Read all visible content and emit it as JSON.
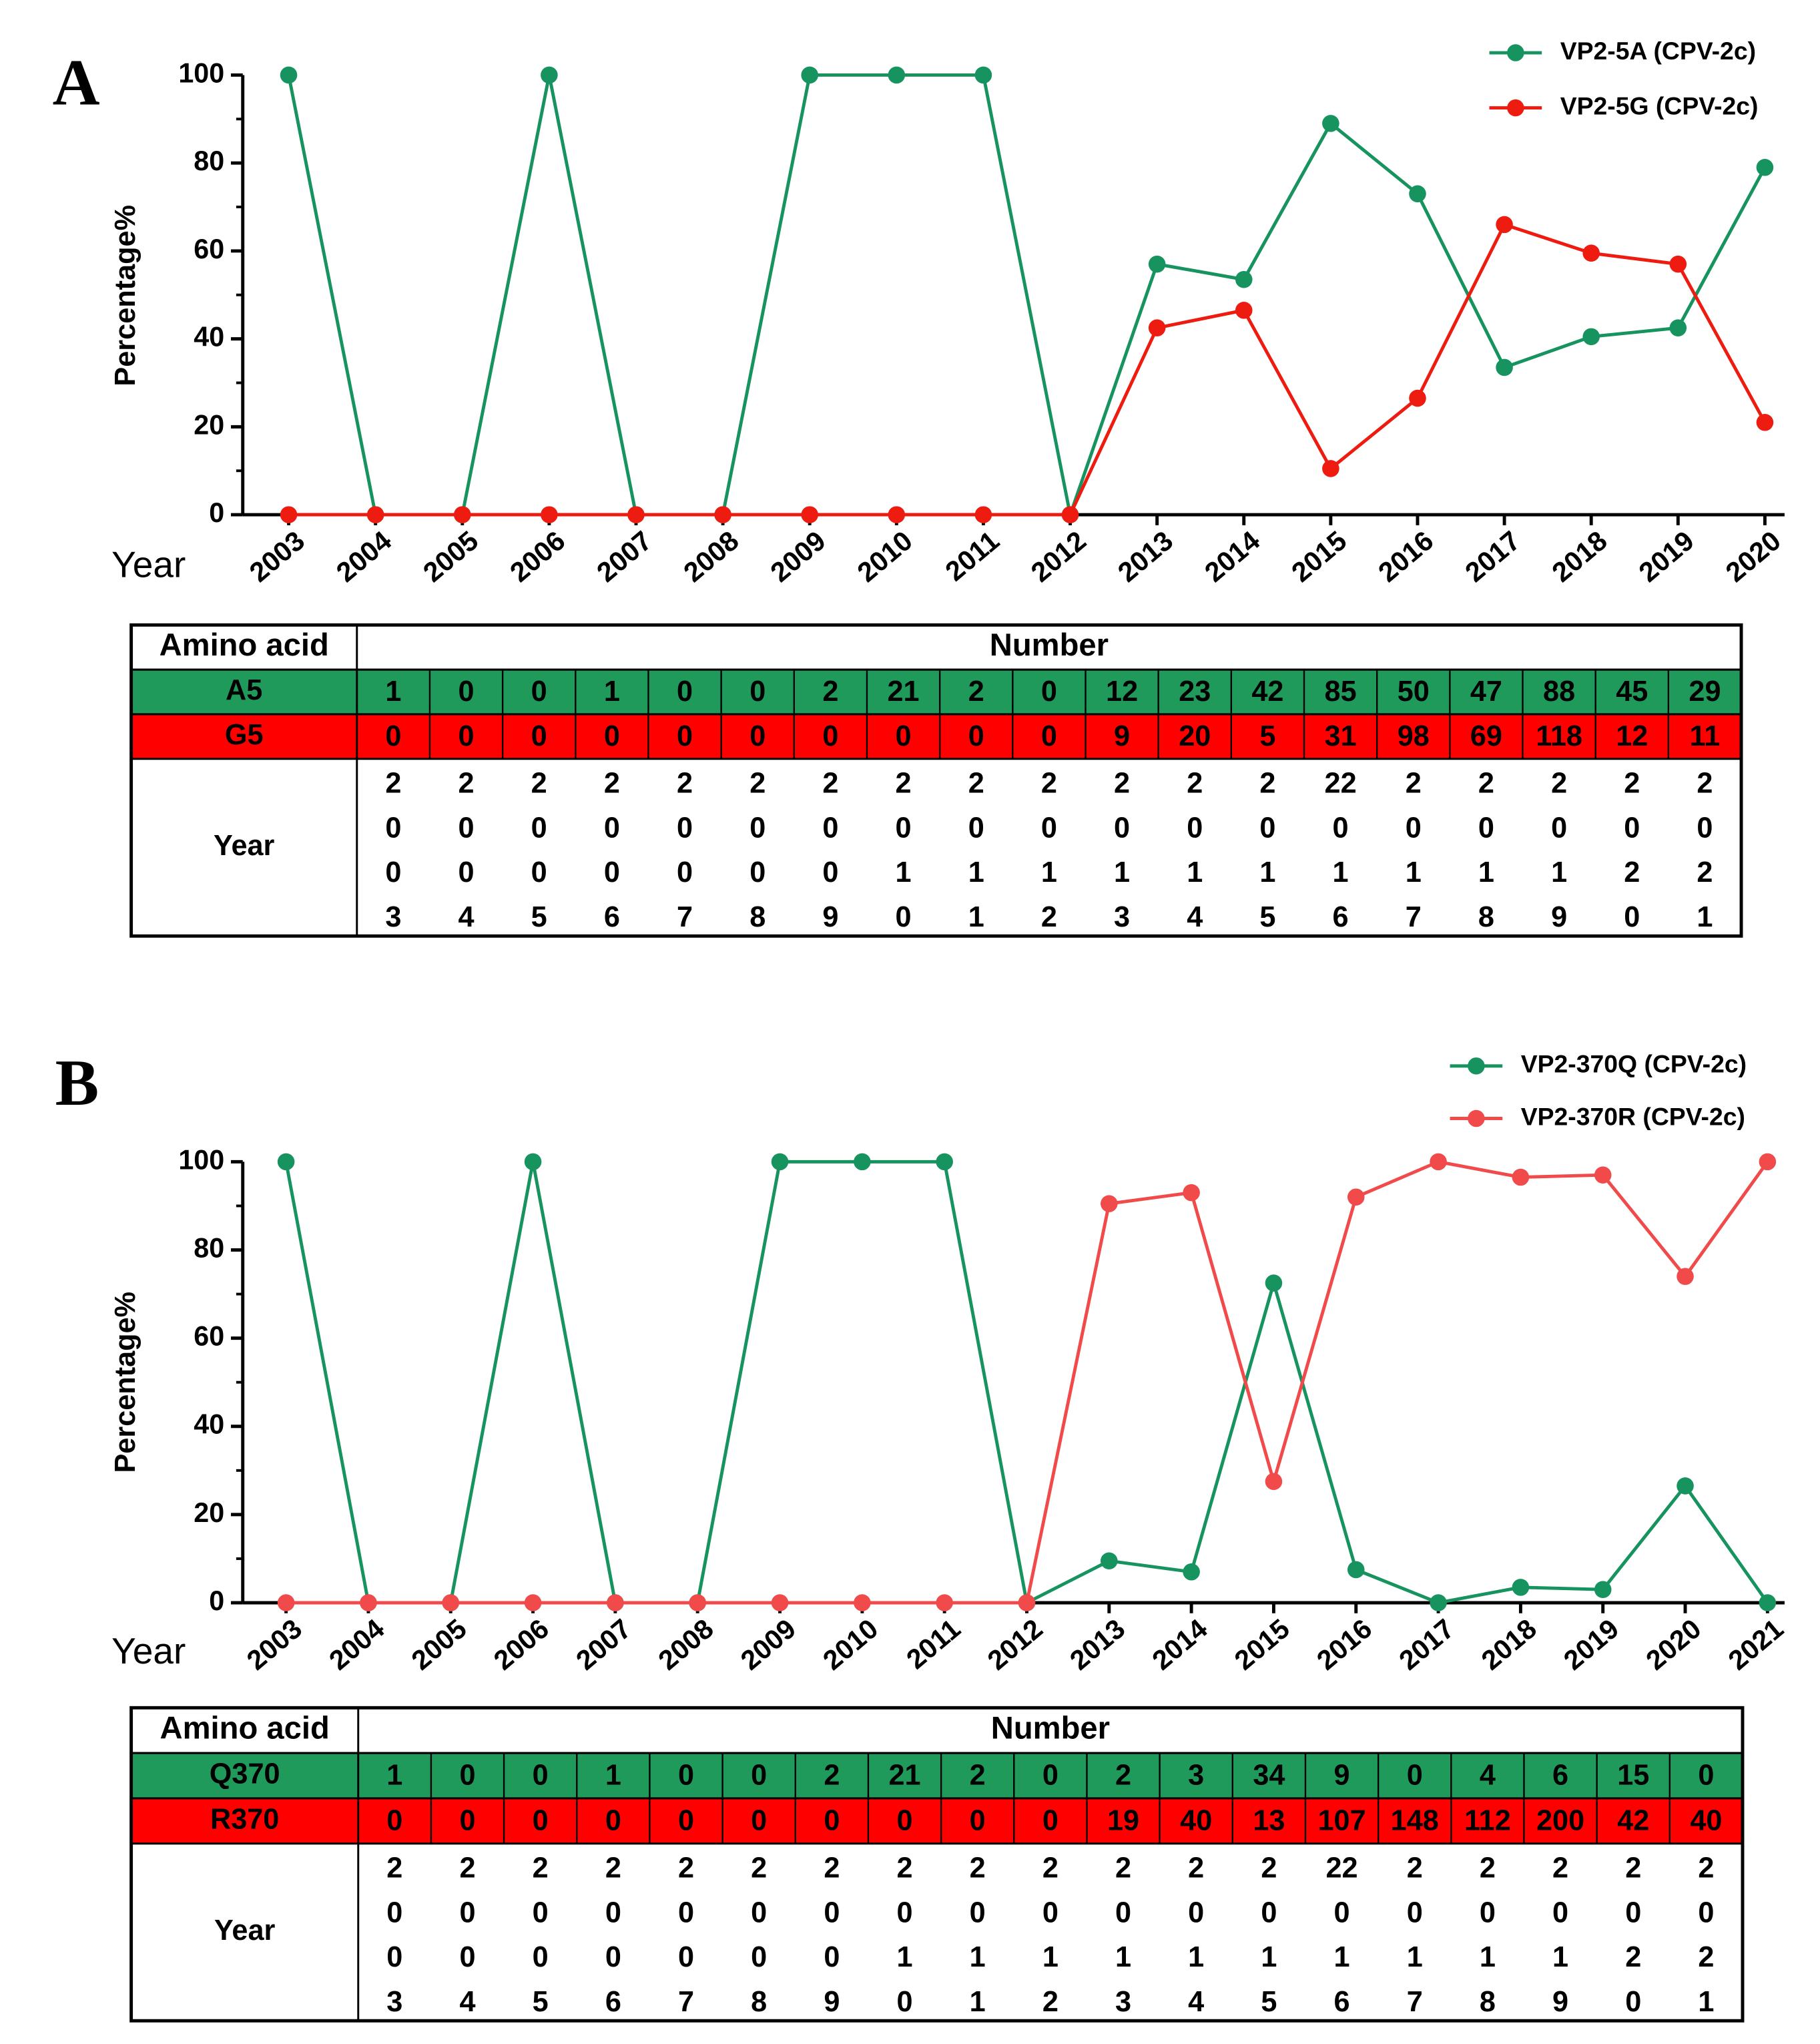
{
  "chart_data": [
    {
      "type": "line",
      "panel": "A",
      "ylabel": "Percentage%",
      "xlabel": "Year",
      "categories": [
        "2003",
        "2004",
        "2005",
        "2006",
        "2007",
        "2008",
        "2009",
        "2010",
        "2011",
        "2012",
        "2013",
        "2014",
        "2015",
        "2016",
        "2017",
        "2018",
        "2019",
        "2020"
      ],
      "series": [
        {
          "name": "VP2-5A (CPV-2c)",
          "color": "#16935f",
          "values": [
            100,
            0,
            0,
            100,
            0,
            0,
            100,
            100,
            100,
            0,
            57,
            53.5,
            89,
            73,
            33.5,
            40.5,
            42.5,
            79
          ]
        },
        {
          "name": "VP2-5G (CPV-2c)",
          "color": "#ee1c10",
          "values": [
            0,
            0,
            0,
            0,
            0,
            0,
            0,
            0,
            0,
            0,
            42.5,
            46.5,
            10.5,
            26.5,
            66,
            59.5,
            57,
            21
          ]
        }
      ],
      "ylim": [
        0,
        100
      ],
      "yticks": [
        0,
        20,
        40,
        60,
        80,
        100
      ],
      "legend": "upper right"
    },
    {
      "type": "line",
      "panel": "B",
      "ylabel": "Percentage%",
      "xlabel": "Year",
      "categories": [
        "2003",
        "2004",
        "2005",
        "2006",
        "2007",
        "2008",
        "2009",
        "2010",
        "2011",
        "2012",
        "2013",
        "2014",
        "2015",
        "2016",
        "2017",
        "2018",
        "2019",
        "2020",
        "2021"
      ],
      "series": [
        {
          "name": "VP2-370Q (CPV-2c)",
          "color": "#16935f",
          "values": [
            100,
            0,
            0,
            100,
            0,
            0,
            100,
            100,
            100,
            0,
            9.5,
            7,
            72.5,
            7.5,
            0,
            3.5,
            3,
            26.5,
            0
          ]
        },
        {
          "name": "VP2-370R (CPV-2c)",
          "color": "#f04a4a",
          "values": [
            0,
            0,
            0,
            0,
            0,
            0,
            0,
            0,
            0,
            0,
            90.5,
            93,
            27.5,
            92,
            100,
            96.5,
            97,
            74,
            100
          ]
        }
      ],
      "ylim": [
        0,
        100
      ],
      "yticks": [
        0,
        20,
        40,
        60,
        80,
        100
      ],
      "legend": "upper right"
    }
  ],
  "tables": [
    {
      "header": [
        "Amino acid",
        "Number"
      ],
      "rows": [
        {
          "name": "A5",
          "color": "#1f9a5a",
          "values": [
            1,
            0,
            0,
            1,
            0,
            0,
            2,
            21,
            2,
            0,
            12,
            23,
            42,
            85,
            50,
            47,
            88,
            45,
            29
          ]
        },
        {
          "name": "G5",
          "color": "#ff0000",
          "values": [
            0,
            0,
            0,
            0,
            0,
            0,
            0,
            0,
            0,
            0,
            9,
            20,
            5,
            31,
            98,
            69,
            118,
            12,
            11
          ]
        }
      ],
      "year_label": "Year",
      "year_rows": [
        [
          "2",
          "2",
          "2",
          "2",
          "2",
          "2",
          "2",
          "2",
          "2",
          "2",
          "2",
          "2",
          "2",
          "22",
          "2",
          "2",
          "2",
          "2",
          "2"
        ],
        [
          "0",
          "0",
          "0",
          "0",
          "0",
          "0",
          "0",
          "0",
          "0",
          "0",
          "0",
          "0",
          "0",
          "0",
          "0",
          "0",
          "0",
          "0",
          "0"
        ],
        [
          "0",
          "0",
          "0",
          "0",
          "0",
          "0",
          "0",
          "1",
          "1",
          "1",
          "1",
          "1",
          "1",
          "1",
          "1",
          "1",
          "1",
          "2",
          "2"
        ],
        [
          "3",
          "4",
          "5",
          "6",
          "7",
          "8",
          "9",
          "0",
          "1",
          "2",
          "3",
          "4",
          "5",
          "6",
          "7",
          "8",
          "9",
          "0",
          "1"
        ]
      ]
    },
    {
      "header": [
        "Amino acid",
        "Number"
      ],
      "rows": [
        {
          "name": "Q370",
          "color": "#1f9a5a",
          "values": [
            1,
            0,
            0,
            1,
            0,
            0,
            2,
            21,
            2,
            0,
            2,
            3,
            34,
            9,
            0,
            4,
            6,
            15,
            0
          ]
        },
        {
          "name": "R370",
          "color": "#ff0000",
          "values": [
            0,
            0,
            0,
            0,
            0,
            0,
            0,
            0,
            0,
            0,
            19,
            40,
            13,
            107,
            148,
            112,
            200,
            42,
            40
          ]
        }
      ],
      "year_label": "Year",
      "year_rows": [
        [
          "2",
          "2",
          "2",
          "2",
          "2",
          "2",
          "2",
          "2",
          "2",
          "2",
          "2",
          "2",
          "2",
          "22",
          "2",
          "2",
          "2",
          "2",
          "2"
        ],
        [
          "0",
          "0",
          "0",
          "0",
          "0",
          "0",
          "0",
          "0",
          "0",
          "0",
          "0",
          "0",
          "0",
          "0",
          "0",
          "0",
          "0",
          "0",
          "0"
        ],
        [
          "0",
          "0",
          "0",
          "0",
          "0",
          "0",
          "0",
          "1",
          "1",
          "1",
          "1",
          "1",
          "1",
          "1",
          "1",
          "1",
          "1",
          "2",
          "2"
        ],
        [
          "3",
          "4",
          "5",
          "6",
          "7",
          "8",
          "9",
          "0",
          "1",
          "2",
          "3",
          "4",
          "5",
          "6",
          "7",
          "8",
          "9",
          "0",
          "1"
        ]
      ]
    }
  ]
}
